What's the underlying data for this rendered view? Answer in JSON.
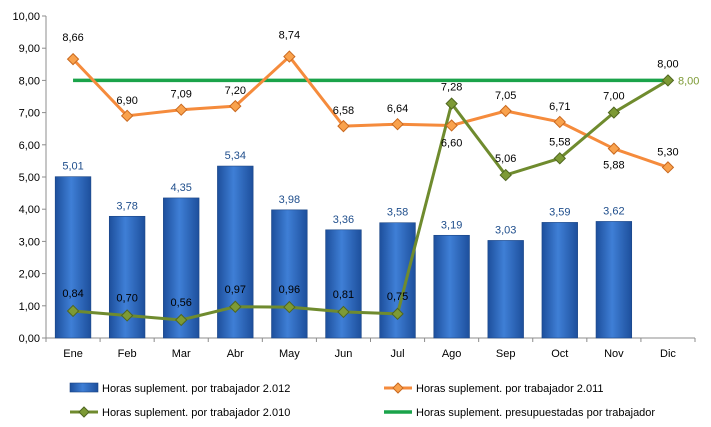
{
  "chart_data": {
    "type": "bar",
    "categories": [
      "Ene",
      "Feb",
      "Mar",
      "Abr",
      "May",
      "Jun",
      "Jul",
      "Ago",
      "Sep",
      "Oct",
      "Nov",
      "Dic"
    ],
    "ylim": [
      0,
      10
    ],
    "y_ticks": [
      "0,00",
      "1,00",
      "2,00",
      "3,00",
      "4,00",
      "5,00",
      "6,00",
      "7,00",
      "8,00",
      "9,00",
      "10,00"
    ],
    "grid": false,
    "legend_position": "bottom",
    "series": [
      {
        "name": "Horas suplement. por trabajador 2.012",
        "kind": "bar",
        "color": "#2e6bc2",
        "values": [
          5.01,
          3.78,
          4.35,
          5.34,
          3.98,
          3.36,
          3.58,
          3.19,
          3.03,
          3.59,
          3.62,
          null
        ],
        "labels": [
          "5,01",
          "3,78",
          "4,35",
          "5,34",
          "3,98",
          "3,36",
          "3,58",
          "3,19",
          "3,03",
          "3,59",
          "3,62",
          ""
        ]
      },
      {
        "name": "Horas suplement. por trabajador 2.011",
        "kind": "line",
        "color": "#f58b3c",
        "values": [
          8.66,
          6.9,
          7.09,
          7.2,
          8.74,
          6.58,
          6.64,
          6.6,
          7.05,
          6.71,
          5.88,
          5.3
        ],
        "labels": [
          "8,66",
          "6,90",
          "7,09",
          "7,20",
          "8,74",
          "6,58",
          "6,64",
          "6,60",
          "7,05",
          "6,71",
          "5,88",
          "5,30"
        ]
      },
      {
        "name": "Horas suplement. por trabajador 2.010",
        "kind": "line",
        "color": "#6f8b2e",
        "values": [
          0.84,
          0.7,
          0.56,
          0.97,
          0.96,
          0.81,
          0.75,
          7.28,
          5.06,
          5.58,
          7.0,
          8.0
        ],
        "labels": [
          "0,84",
          "0,70",
          "0,56",
          "0,97",
          "0,96",
          "0,81",
          "0,75",
          "7,28",
          "5,06",
          "5,58",
          "7,00",
          "8,00"
        ]
      },
      {
        "name": "Horas suplement. presupuestadas por trabajador",
        "kind": "line",
        "color": "#1aa34a",
        "values": [
          8,
          8,
          8,
          8,
          8,
          8,
          8,
          8,
          8,
          8,
          8,
          8
        ],
        "labels": [
          "",
          "",
          "",
          "",
          "",
          "",
          "",
          "",
          "",
          "",
          "",
          "8,00"
        ]
      }
    ]
  }
}
